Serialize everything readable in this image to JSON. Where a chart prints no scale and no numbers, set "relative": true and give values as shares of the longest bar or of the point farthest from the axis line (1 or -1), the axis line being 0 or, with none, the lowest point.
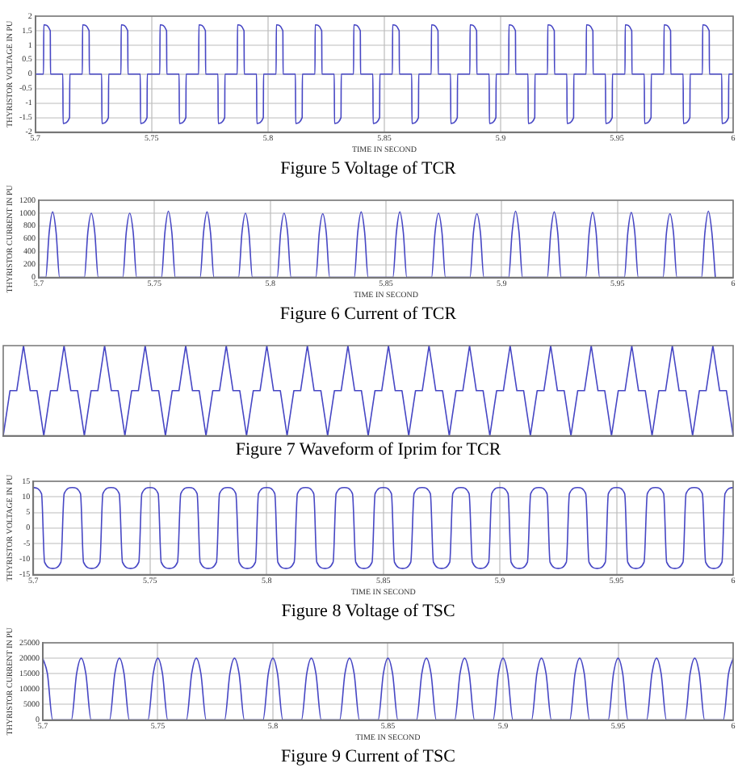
{
  "chart_data": [
    {
      "type": "line",
      "title": "Figure 5 Voltage of TCR",
      "xlabel": "TIME IN SECOND",
      "ylabel": "THYRISTOR VOLTAGE IN PU",
      "xlim": [
        5.7,
        6
      ],
      "xticks": [
        5.7,
        5.75,
        5.8,
        5.85,
        5.9,
        5.95,
        6
      ],
      "ylim": [
        -2,
        2
      ],
      "yticks": [
        -2,
        -1.5,
        -1,
        -0.5,
        0,
        0.5,
        1,
        1.5,
        2
      ],
      "grid": true,
      "legend": false,
      "marker": "none",
      "series": [
        {
          "color": "#4646c4",
          "x": [
            5.7,
            5.7035,
            5.7036,
            5.7064,
            5.7065,
            5.7118,
            5.7119,
            5.7147,
            5.7148,
            5.7202,
            5.7203,
            5.7231,
            5.7232,
            5.7285,
            5.7286,
            5.7314,
            5.7315,
            5.7368,
            5.7369,
            5.7397,
            5.7398,
            5.7451,
            5.7452,
            5.748,
            5.7481,
            5.7535,
            5.7536,
            5.7564,
            5.7565,
            5.7618,
            5.7619,
            5.7647,
            5.7648,
            5.7702,
            5.7703,
            5.7731,
            5.7732,
            5.7785,
            5.7786,
            5.7814,
            5.7815,
            5.7868,
            5.7869,
            5.7897,
            5.7898,
            5.7951,
            5.7952,
            5.798,
            5.7981,
            5.8035,
            5.8036,
            5.8064,
            5.8065,
            5.8118,
            5.8119,
            5.8147,
            5.8148,
            5.8202,
            5.8203,
            5.8231,
            5.8232,
            5.8285,
            5.8286,
            5.8314,
            5.8315,
            5.8368,
            5.8369,
            5.8397,
            5.8398,
            5.8451,
            5.8452,
            5.848,
            5.8481,
            5.8535,
            5.8536,
            5.8564,
            5.8565,
            5.8618,
            5.8619,
            5.8647,
            5.8648,
            5.8702,
            5.8703,
            5.8731,
            5.8732,
            5.8785,
            5.8786,
            5.8814,
            5.8815,
            5.8868,
            5.8869,
            5.8897,
            5.8898,
            5.8951,
            5.8952,
            5.898,
            5.8981,
            5.9035,
            5.9036,
            5.9064,
            5.9065,
            5.9118,
            5.9119,
            5.9147,
            5.9148,
            5.9202,
            5.9203,
            5.9231,
            5.9232,
            5.9285,
            5.9286,
            5.9314,
            5.9315,
            5.9368,
            5.9369,
            5.9397,
            5.9398,
            5.9451,
            5.9452,
            5.948,
            5.9481,
            5.9535,
            5.9536,
            5.9564,
            5.9565,
            5.9618,
            5.9619,
            5.9647,
            5.9648,
            5.9702,
            5.9703,
            5.9731,
            5.9732,
            5.9785,
            5.9786,
            5.9814,
            5.9815,
            5.9868,
            5.9869,
            5.9897,
            5.9898,
            5.9951,
            5.9952,
            5.998,
            5.9981,
            6
          ],
          "values": [
            0,
            0,
            1.7,
            1.5,
            0,
            0,
            -1.7,
            -1.5,
            0,
            0,
            1.7,
            1.5,
            0,
            0,
            -1.7,
            -1.5,
            0,
            0,
            1.7,
            1.5,
            0,
            0,
            -1.7,
            -1.5,
            0,
            0,
            1.7,
            1.5,
            0,
            0,
            -1.7,
            -1.5,
            0,
            0,
            1.7,
            1.5,
            0,
            0,
            -1.7,
            -1.5,
            0,
            0,
            1.7,
            1.5,
            0,
            0,
            -1.7,
            -1.5,
            0,
            0,
            1.7,
            1.5,
            0,
            0,
            -1.7,
            -1.5,
            0,
            0,
            1.7,
            1.5,
            0,
            0,
            -1.7,
            -1.5,
            0,
            0,
            1.7,
            1.5,
            0,
            0,
            -1.7,
            -1.5,
            0,
            0,
            1.7,
            1.5,
            0,
            0,
            -1.7,
            -1.5,
            0,
            0,
            1.7,
            1.5,
            0,
            0,
            -1.7,
            -1.5,
            0,
            0,
            1.7,
            1.5,
            0,
            0,
            -1.7,
            -1.5,
            0,
            0,
            1.7,
            1.5,
            0,
            0,
            -1.7,
            -1.5,
            0,
            0,
            1.7,
            1.5,
            0,
            0,
            -1.7,
            -1.5,
            0,
            0,
            1.7,
            1.5,
            0,
            0,
            -1.7,
            -1.5,
            0,
            0,
            1.7,
            1.5,
            0,
            0,
            -1.7,
            -1.5,
            0,
            0,
            1.7,
            1.5,
            0,
            0,
            -1.7,
            -1.5,
            0,
            0,
            1.7,
            1.5,
            0,
            0,
            -1.7,
            -1.5,
            0,
            0
          ]
        }
      ]
    },
    {
      "type": "line",
      "title": "Figure 6 Current of TCR",
      "xlabel": "TIME IN SECOND",
      "ylabel": "THYRISTOR CURRENT IN PU",
      "xlim": [
        5.7,
        6
      ],
      "xticks": [
        5.7,
        5.75,
        5.8,
        5.85,
        5.9,
        5.95,
        6
      ],
      "ylim": [
        0,
        1200
      ],
      "yticks": [
        0,
        200,
        400,
        600,
        800,
        1000,
        1200
      ],
      "grid": true,
      "legend": false,
      "marker": "none",
      "series": [
        {
          "color": "#4646c4",
          "x": [
            5.7,
            5.703,
            5.7045,
            5.706,
            5.7075,
            5.709,
            5.7197,
            5.7212,
            5.7227,
            5.7242,
            5.7257,
            5.7363,
            5.7378,
            5.7393,
            5.7408,
            5.7423,
            5.753,
            5.7545,
            5.756,
            5.7575,
            5.759,
            5.7697,
            5.7712,
            5.7727,
            5.7742,
            5.7757,
            5.7863,
            5.7878,
            5.7893,
            5.7908,
            5.7923,
            5.803,
            5.8045,
            5.806,
            5.8075,
            5.809,
            5.8197,
            5.8212,
            5.8227,
            5.8242,
            5.8257,
            5.8363,
            5.8378,
            5.8393,
            5.8408,
            5.8423,
            5.853,
            5.8545,
            5.856,
            5.8575,
            5.859,
            5.8697,
            5.8712,
            5.8727,
            5.8742,
            5.8757,
            5.8863,
            5.8878,
            5.8893,
            5.8908,
            5.8923,
            5.903,
            5.9045,
            5.906,
            5.9075,
            5.909,
            5.9197,
            5.9212,
            5.9227,
            5.9242,
            5.9257,
            5.9363,
            5.9378,
            5.9393,
            5.9408,
            5.9423,
            5.953,
            5.9545,
            5.956,
            5.9575,
            5.959,
            5.9697,
            5.9712,
            5.9727,
            5.9742,
            5.9757,
            5.9863,
            5.9878,
            5.9893,
            5.9908,
            5.9923
          ],
          "values": [
            0,
            0,
            700,
            1020,
            700,
            0,
            0,
            700,
            1000,
            700,
            0,
            0,
            700,
            1000,
            700,
            0,
            0,
            700,
            1030,
            700,
            0,
            0,
            700,
            1020,
            700,
            0,
            0,
            700,
            1000,
            700,
            0,
            0,
            700,
            1000,
            700,
            0,
            0,
            700,
            990,
            700,
            0,
            0,
            700,
            1020,
            700,
            0,
            0,
            700,
            1020,
            700,
            0,
            0,
            700,
            1000,
            700,
            0,
            0,
            700,
            990,
            700,
            0,
            0,
            700,
            1030,
            700,
            0,
            0,
            700,
            1020,
            700,
            0,
            0,
            700,
            1010,
            700,
            0,
            0,
            700,
            1010,
            700,
            0,
            0,
            700,
            990,
            700,
            0,
            0,
            700,
            1030,
            700,
            0
          ]
        }
      ]
    },
    {
      "type": "line",
      "title": "Figure 7 Waveform of Iprim for TCR",
      "relative": true,
      "tick_labels": false,
      "legend": false,
      "marker": "none",
      "categories": [
        null,
        null,
        null,
        null,
        null,
        null,
        null,
        null,
        null,
        null,
        null,
        null,
        null,
        null,
        null,
        null,
        null,
        null,
        null,
        null,
        null,
        null,
        null,
        null,
        null,
        null,
        null,
        null,
        null,
        null,
        null,
        null,
        null,
        null,
        null,
        null,
        null,
        null,
        null,
        null,
        null,
        null,
        null,
        null,
        null,
        null,
        null,
        null,
        null,
        null,
        null,
        null,
        null,
        null,
        null,
        null,
        null,
        null,
        null,
        null,
        null,
        null,
        null,
        null,
        null,
        null,
        null,
        null,
        null,
        null,
        null,
        null,
        null,
        null,
        null,
        null,
        null,
        null,
        null,
        null,
        null,
        null,
        null,
        null,
        null,
        null,
        null,
        null,
        null,
        null,
        null,
        null,
        null,
        null,
        null,
        null,
        null,
        null,
        null,
        null,
        null,
        null,
        null,
        null,
        null,
        null,
        null,
        null,
        null
      ],
      "series": [
        {
          "color": "#4646c4",
          "values": [
            0,
            0.5,
            0.5,
            1,
            0.5,
            0.5,
            0,
            0.5,
            0.5,
            1,
            0.5,
            0.5,
            0,
            0.5,
            0.5,
            1,
            0.5,
            0.5,
            0,
            0.5,
            0.5,
            1,
            0.5,
            0.5,
            0,
            0.5,
            0.5,
            1,
            0.5,
            0.5,
            0,
            0.5,
            0.5,
            1,
            0.5,
            0.5,
            0,
            0.5,
            0.5,
            1,
            0.5,
            0.5,
            0,
            0.5,
            0.5,
            1,
            0.5,
            0.5,
            0,
            0.5,
            0.5,
            1,
            0.5,
            0.5,
            0,
            0.5,
            0.5,
            1,
            0.5,
            0.5,
            0,
            0.5,
            0.5,
            1,
            0.5,
            0.5,
            0,
            0.5,
            0.5,
            1,
            0.5,
            0.5,
            0,
            0.5,
            0.5,
            1,
            0.5,
            0.5,
            0,
            0.5,
            0.5,
            1,
            0.5,
            0.5,
            0,
            0.5,
            0.5,
            1,
            0.5,
            0.5,
            0,
            0.5,
            0.5,
            1,
            0.5,
            0.5,
            0,
            0.5,
            0.5,
            1,
            0.5,
            0.5,
            0,
            0.5,
            0.5,
            1,
            0.5,
            0.5,
            0
          ]
        }
      ]
    },
    {
      "type": "line",
      "title": "Figure 8 Voltage of TSC",
      "xlabel": "TIME IN SECOND",
      "ylabel": "THYRISTOR VOLTAGE IN PU",
      "xlim": [
        5.7,
        6
      ],
      "xticks": [
        5.7,
        5.75,
        5.8,
        5.85,
        5.9,
        5.95,
        6
      ],
      "ylim": [
        -15,
        15
      ],
      "yticks": [
        -15,
        -10,
        -5,
        0,
        5,
        10,
        15
      ],
      "grid": true,
      "legend": false,
      "marker": "none",
      "series": [
        {
          "color": "#4646c4",
          "x": [
            5.7,
            5.7035,
            5.7048,
            5.7083,
            5.7118,
            5.7132,
            5.7167,
            5.7202,
            5.7215,
            5.725,
            5.7285,
            5.7298,
            5.7333,
            5.7368,
            5.7382,
            5.7417,
            5.7452,
            5.7465,
            5.75,
            5.7535,
            5.7548,
            5.7583,
            5.7618,
            5.7632,
            5.7667,
            5.7702,
            5.7715,
            5.775,
            5.7785,
            5.7798,
            5.7833,
            5.7868,
            5.7882,
            5.7917,
            5.7952,
            5.7965,
            5.8,
            5.8035,
            5.8048,
            5.8083,
            5.8118,
            5.8132,
            5.8167,
            5.8202,
            5.8215,
            5.825,
            5.8285,
            5.8298,
            5.8333,
            5.8368,
            5.8382,
            5.8417,
            5.8452,
            5.8465,
            5.85,
            5.8535,
            5.8548,
            5.8583,
            5.8618,
            5.8632,
            5.8667,
            5.8702,
            5.8715,
            5.875,
            5.8785,
            5.8798,
            5.8833,
            5.8868,
            5.8882,
            5.8917,
            5.8952,
            5.8965,
            5.9,
            5.9035,
            5.9048,
            5.9083,
            5.9118,
            5.9132,
            5.9167,
            5.9202,
            5.9215,
            5.925,
            5.9285,
            5.9298,
            5.9333,
            5.9368,
            5.9382,
            5.9417,
            5.9452,
            5.9465,
            5.95,
            5.9535,
            5.9548,
            5.9583,
            5.9618,
            5.9632,
            5.9667,
            5.9702,
            5.9715,
            5.975,
            5.9785,
            5.9798,
            5.9833,
            5.9868,
            5.9882,
            5.9917,
            5.9952,
            5.9965,
            6
          ],
          "values": [
            13,
            11,
            -11,
            -13,
            -11,
            11,
            13,
            11,
            -11,
            -13,
            -11,
            11,
            13,
            11,
            -11,
            -13,
            -11,
            11,
            13,
            11,
            -11,
            -13,
            -11,
            11,
            13,
            11,
            -11,
            -13,
            -11,
            11,
            13,
            11,
            -11,
            -13,
            -11,
            11,
            13,
            11,
            -11,
            -13,
            -11,
            11,
            13,
            11,
            -11,
            -13,
            -11,
            11,
            13,
            11,
            -11,
            -13,
            -11,
            11,
            13,
            11,
            -11,
            -13,
            -11,
            11,
            13,
            11,
            -11,
            -13,
            -11,
            11,
            13,
            11,
            -11,
            -13,
            -11,
            11,
            13,
            11,
            -11,
            -13,
            -11,
            11,
            13,
            11,
            -11,
            -13,
            -11,
            11,
            13,
            11,
            -11,
            -13,
            -11,
            11,
            13,
            11,
            -11,
            -13,
            -11,
            11,
            13,
            11,
            -11,
            -13,
            -11,
            11,
            13,
            11,
            -11,
            -13,
            -11,
            11,
            13
          ]
        }
      ]
    },
    {
      "type": "line",
      "title": "Figure 9 Current of TSC",
      "xlabel": "TIME IN SECOND",
      "ylabel": "THYRISTOR CURRENT IN PU",
      "xlim": [
        5.7,
        6
      ],
      "xticks": [
        5.7,
        5.75,
        5.8,
        5.85,
        5.9,
        5.95,
        6
      ],
      "ylim": [
        0,
        25000
      ],
      "yticks": [
        0,
        5000,
        10000,
        15000,
        20000,
        25000
      ],
      "grid": true,
      "legend": false,
      "marker": "none",
      "series": [
        {
          "color": "#4646c4",
          "x": [
            5.7,
            5.702,
            5.7043,
            5.7124,
            5.7147,
            5.7167,
            5.7187,
            5.721,
            5.729,
            5.7313,
            5.7333,
            5.7353,
            5.7376,
            5.7457,
            5.748,
            5.75,
            5.752,
            5.7543,
            5.7624,
            5.7647,
            5.7667,
            5.7687,
            5.771,
            5.779,
            5.7813,
            5.7833,
            5.7853,
            5.7876,
            5.7957,
            5.798,
            5.8,
            5.802,
            5.8043,
            5.8124,
            5.8147,
            5.8167,
            5.8187,
            5.821,
            5.829,
            5.8313,
            5.8333,
            5.8353,
            5.8376,
            5.8457,
            5.848,
            5.85,
            5.852,
            5.8543,
            5.8624,
            5.8647,
            5.8667,
            5.8687,
            5.871,
            5.879,
            5.8813,
            5.8833,
            5.8853,
            5.8876,
            5.8957,
            5.898,
            5.9,
            5.902,
            5.9043,
            5.9124,
            5.9147,
            5.9167,
            5.9187,
            5.921,
            5.929,
            5.9313,
            5.9333,
            5.9353,
            5.9376,
            5.9457,
            5.948,
            5.95,
            5.952,
            5.9543,
            5.9624,
            5.9647,
            5.9667,
            5.9687,
            5.971,
            5.979,
            5.9813,
            5.9833,
            5.9853,
            5.9876,
            5.9957,
            5.998,
            6
          ],
          "values": [
            20000,
            15000,
            0,
            0,
            15000,
            20000,
            15000,
            0,
            0,
            15000,
            20000,
            15000,
            0,
            0,
            15000,
            20000,
            15000,
            0,
            0,
            15000,
            20000,
            15000,
            0,
            0,
            15000,
            20000,
            15000,
            0,
            0,
            15000,
            20000,
            15000,
            0,
            0,
            15000,
            20000,
            15000,
            0,
            0,
            15000,
            20000,
            15000,
            0,
            0,
            15000,
            20000,
            15000,
            0,
            0,
            15000,
            20000,
            15000,
            0,
            0,
            15000,
            20000,
            15000,
            0,
            0,
            15000,
            20000,
            15000,
            0,
            0,
            15000,
            20000,
            15000,
            0,
            0,
            15000,
            20000,
            15000,
            0,
            0,
            15000,
            20000,
            15000,
            0,
            0,
            15000,
            20000,
            15000,
            0,
            0,
            15000,
            20000,
            15000,
            0,
            0,
            15000,
            20000
          ]
        }
      ]
    }
  ]
}
